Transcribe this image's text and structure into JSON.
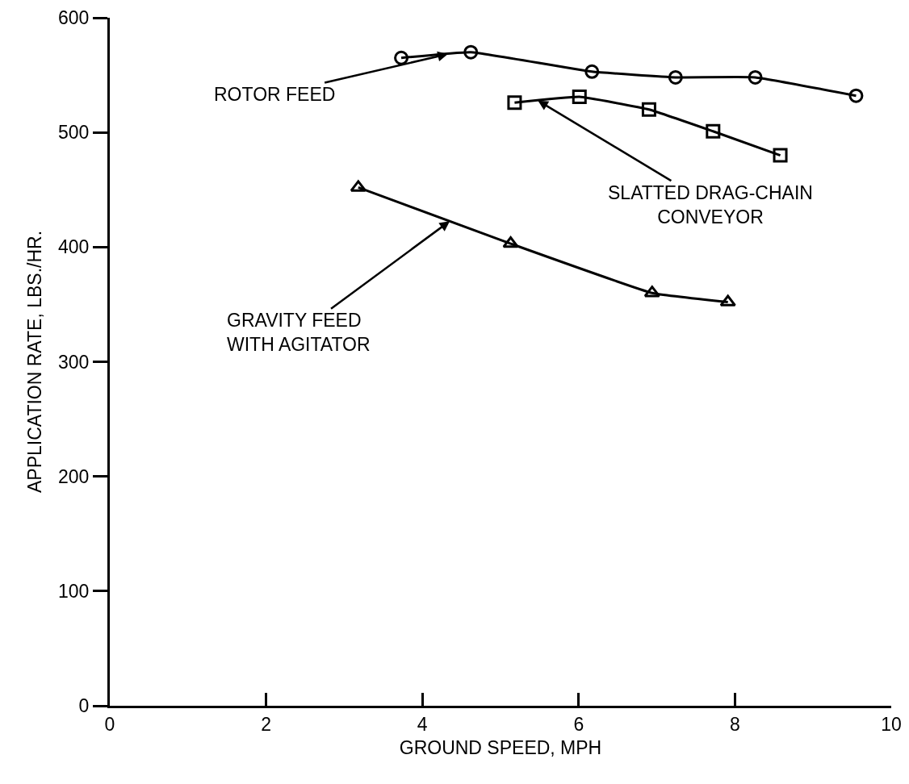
{
  "chart_data": {
    "type": "line",
    "xlabel": "GROUND SPEED, MPH",
    "ylabel": "APPLICATION RATE, LBS./HR.",
    "xlim": [
      0,
      10
    ],
    "xticks": [
      0,
      2,
      4,
      6,
      8,
      10
    ],
    "ylim": [
      0,
      600
    ],
    "yticks": [
      0,
      100,
      200,
      300,
      400,
      500,
      600
    ],
    "grid": false,
    "series": [
      {
        "name": "ROTOR FEED",
        "color": "#000000",
        "marker": "circle",
        "x": [
          3.73,
          4.62,
          6.17,
          7.24,
          8.26,
          9.55
        ],
        "values": [
          565,
          570,
          553,
          548,
          548,
          532
        ]
      },
      {
        "name": "SLATTED DRAG-CHAIN\nCONVEYOR",
        "color": "#000000",
        "marker": "square",
        "x": [
          5.18,
          6.01,
          6.9,
          7.72,
          8.58
        ],
        "values": [
          526,
          531,
          520,
          501,
          480
        ]
      },
      {
        "name": "GRAVITY FEED\nWITH AGITATOR",
        "color": "#000000",
        "marker": "triangle",
        "x": [
          3.18,
          5.13,
          6.94,
          7.91
        ],
        "values": [
          452,
          403,
          360,
          352
        ]
      }
    ]
  }
}
